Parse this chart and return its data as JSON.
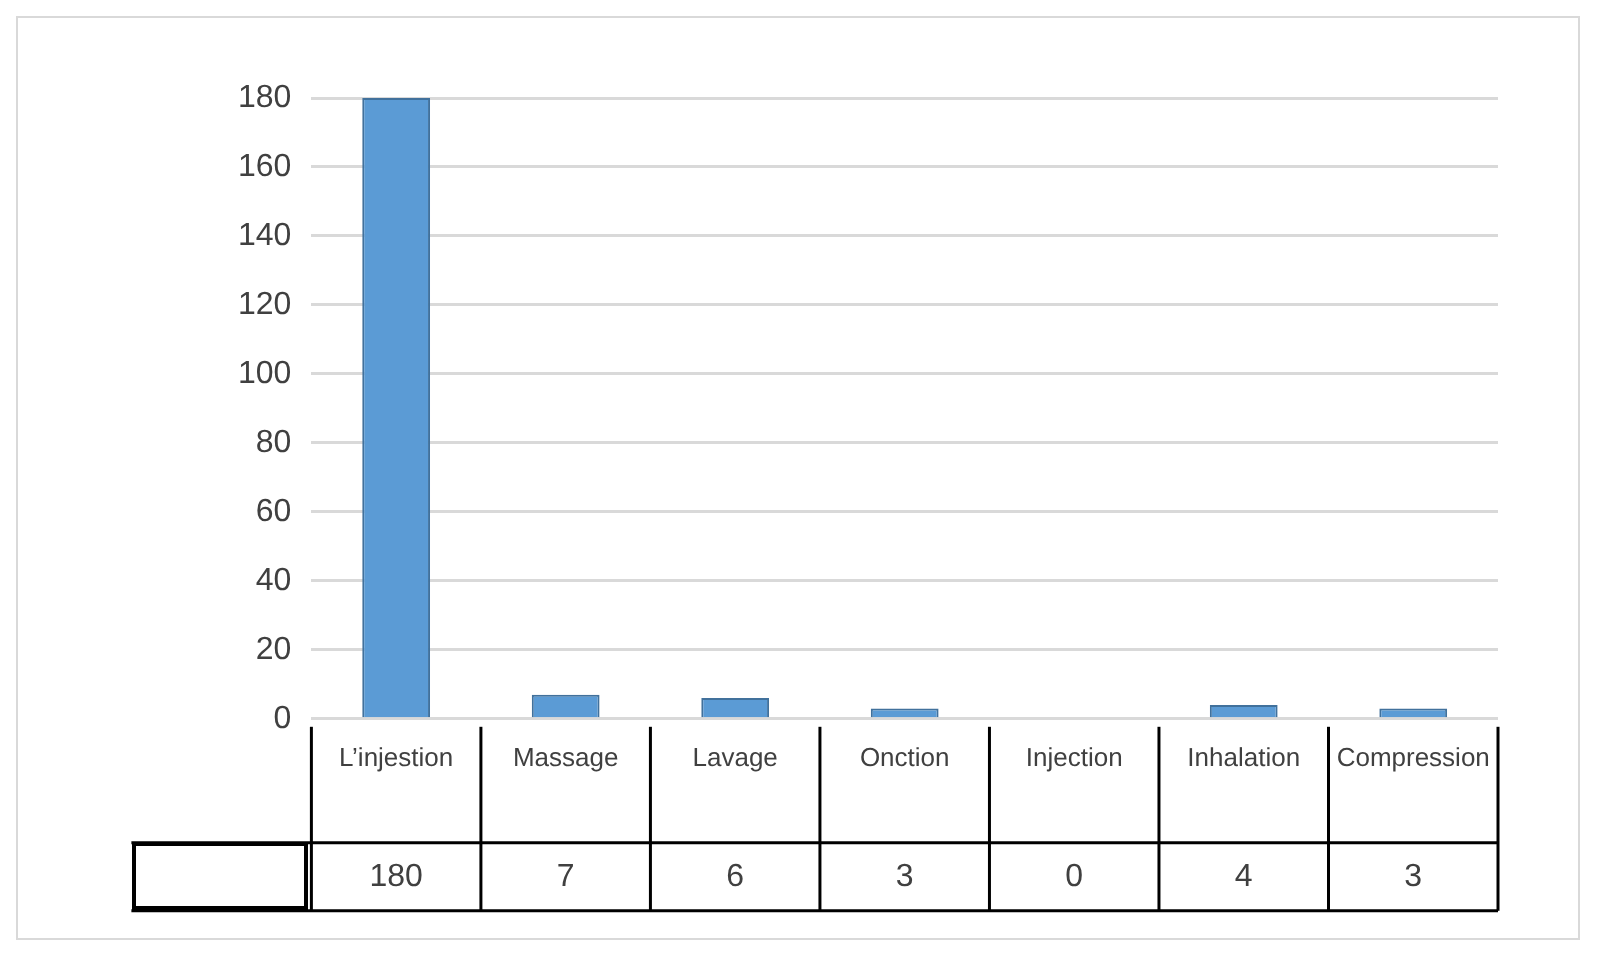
{
  "chart_data": {
    "type": "bar",
    "categories": [
      "L’injestion",
      "Massage",
      "Lavage",
      "Onction",
      "Injection",
      "Inhalation",
      "Compression"
    ],
    "values": [
      180,
      7,
      6,
      3,
      0,
      4,
      3
    ],
    "color": "#5b9bd5",
    "ylim": [
      0,
      180
    ],
    "yticks": [
      0,
      20,
      40,
      60,
      80,
      100,
      120,
      140,
      160,
      180
    ],
    "grid": "y",
    "data_labels": true
  }
}
